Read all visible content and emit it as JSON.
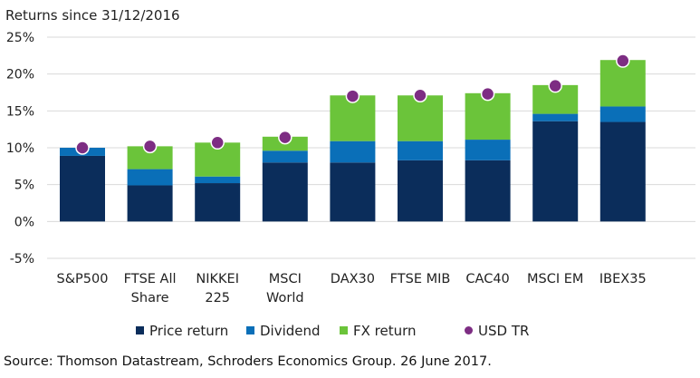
{
  "chart_data": {
    "type": "bar",
    "stacked": true,
    "subtitle": "Returns since 31/12/2016",
    "categories": [
      [
        "S&P500"
      ],
      [
        "FTSE All",
        "Share"
      ],
      [
        "NIKKEI",
        "225"
      ],
      [
        "MSCI",
        "World"
      ],
      [
        "DAX30"
      ],
      [
        "FTSE MIB"
      ],
      [
        "CAC40"
      ],
      [
        "MSCI EM"
      ],
      [
        "IBEX35"
      ]
    ],
    "ylim": [
      -5,
      25
    ],
    "yticks": [
      -5,
      0,
      5,
      10,
      15,
      20,
      25
    ],
    "ytick_labels": [
      "-5%",
      "0%",
      "5%",
      "10%",
      "15%",
      "20%",
      "25%"
    ],
    "grid": true,
    "series": [
      {
        "name": "Price return",
        "color": "#0b2d5b",
        "values": [
          8.9,
          4.9,
          5.2,
          8.0,
          8.0,
          8.3,
          8.3,
          13.6,
          13.5
        ]
      },
      {
        "name": "Dividend",
        "color": "#0a6fb8",
        "values": [
          1.1,
          2.2,
          0.9,
          1.6,
          2.9,
          2.6,
          2.8,
          1.0,
          2.1
        ]
      },
      {
        "name": "FX return",
        "color": "#6bc43a",
        "values": [
          0.0,
          3.1,
          4.6,
          1.9,
          6.2,
          6.2,
          6.3,
          3.9,
          6.3
        ]
      }
    ],
    "markers": {
      "name": "USD TR",
      "color": "#7d2d83",
      "values": [
        10.0,
        10.2,
        10.7,
        11.4,
        17.0,
        17.1,
        17.3,
        18.4,
        21.8
      ]
    },
    "legend_position": "bottom",
    "source": "Source: Thomson Datastream, Schroders Economics Group. 26 June 2017."
  }
}
